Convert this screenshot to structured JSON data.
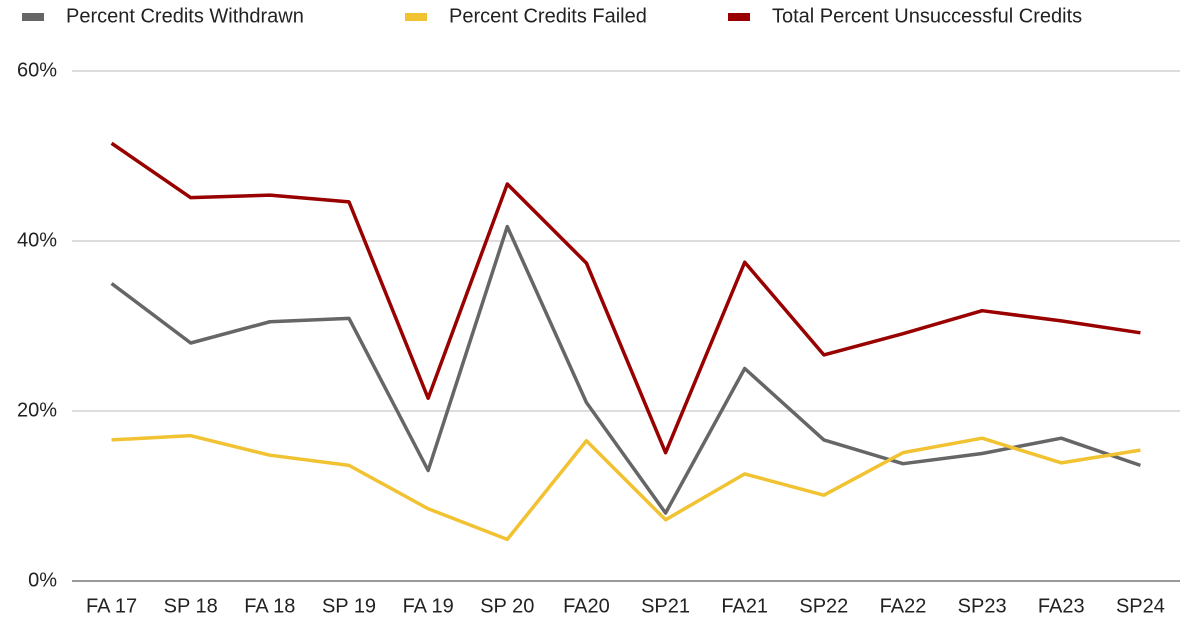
{
  "chart_data": {
    "type": "line",
    "categories": [
      "FA 17",
      "SP 18",
      "FA 18",
      "SP 19",
      "FA 19",
      "SP 20",
      "FA20",
      "SP21",
      "FA21",
      "SP22",
      "FA22",
      "SP23",
      "FA23",
      "SP24"
    ],
    "series": [
      {
        "name": "Percent Credits Withdrawn",
        "color": "#666666",
        "values": [
          35,
          28,
          30.5,
          30.9,
          13,
          41.7,
          21,
          8,
          25,
          16.6,
          13.8,
          15,
          16.8,
          13.6
        ]
      },
      {
        "name": "Percent Credits Failed",
        "color": "#f1c232",
        "values": [
          16.6,
          17.1,
          14.8,
          13.6,
          8.5,
          4.9,
          16.5,
          7.2,
          12.6,
          10.1,
          15.1,
          16.8,
          13.9,
          15.4
        ]
      },
      {
        "name": "Total Percent Unsuccessful Credits",
        "color": "#990000",
        "values": [
          51.5,
          45.1,
          45.4,
          44.6,
          21.5,
          46.7,
          37.4,
          15.1,
          37.5,
          26.6,
          29.1,
          31.8,
          30.6,
          29.2
        ]
      }
    ],
    "ylim": [
      0,
      60
    ],
    "yticks": [
      {
        "value": 0,
        "label": "0%"
      },
      {
        "value": 20,
        "label": "20%"
      },
      {
        "value": 40,
        "label": "40%"
      },
      {
        "value": 60,
        "label": "60%"
      }
    ],
    "grid": true,
    "legend": "top"
  }
}
